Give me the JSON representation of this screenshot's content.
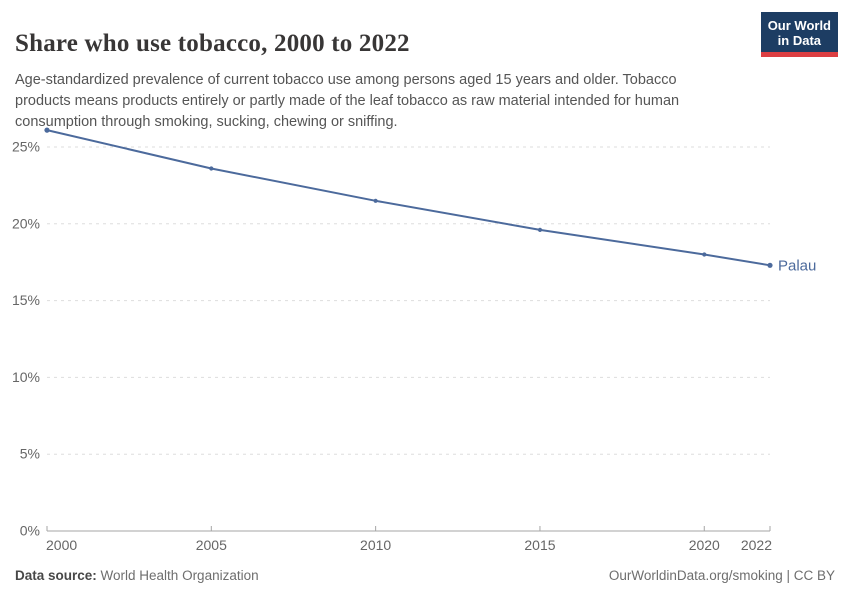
{
  "header": {
    "title": "Share who use tobacco, 2000 to 2022",
    "subtitle": "Age-standardized prevalence of current tobacco use among persons aged 15 years and older. Tobacco products means products entirely or partly made of the leaf tobacco as raw material intended for human consumption through smoking, sucking, chewing or sniffing.",
    "logo": {
      "line1": "Our World",
      "line2": "in Data",
      "bg_color": "#1d3d63",
      "stripe_color": "#dc3e42"
    }
  },
  "chart_data": {
    "type": "line",
    "title": "Share who use tobacco, 2000 to 2022",
    "xlabel": "",
    "ylabel": "",
    "unit": "%",
    "x": [
      2000,
      2005,
      2010,
      2015,
      2020,
      2022
    ],
    "series": [
      {
        "name": "Palau",
        "color": "#4C6A9C",
        "values": [
          26.1,
          23.6,
          21.5,
          19.6,
          18.0,
          17.3
        ]
      }
    ],
    "xlim": [
      2000,
      2022
    ],
    "ylim": [
      0,
      26.8
    ],
    "y_ticks": [
      {
        "value": 0,
        "label": "0%"
      },
      {
        "value": 5,
        "label": "5%"
      },
      {
        "value": 10,
        "label": "10%"
      },
      {
        "value": 15,
        "label": "15%"
      },
      {
        "value": 20,
        "label": "20%"
      },
      {
        "value": 25,
        "label": "25%"
      }
    ],
    "x_ticks": [
      {
        "value": 2000,
        "label": "2000"
      },
      {
        "value": 2005,
        "label": "2005"
      },
      {
        "value": 2010,
        "label": "2010"
      },
      {
        "value": 2015,
        "label": "2015"
      },
      {
        "value": 2020,
        "label": "2020"
      },
      {
        "value": 2022,
        "label": "2022"
      }
    ],
    "grid": "horizontal-dashed",
    "legend_position": "entity-label-right-of-line",
    "colors": {
      "gridline": "#dddddd",
      "axis": "#a5a5a5",
      "tick_label": "#666666"
    }
  },
  "footer": {
    "data_source_label": "Data source:",
    "data_source_value": " World Health Organization",
    "right_text": "OurWorldinData.org/smoking | CC BY"
  }
}
